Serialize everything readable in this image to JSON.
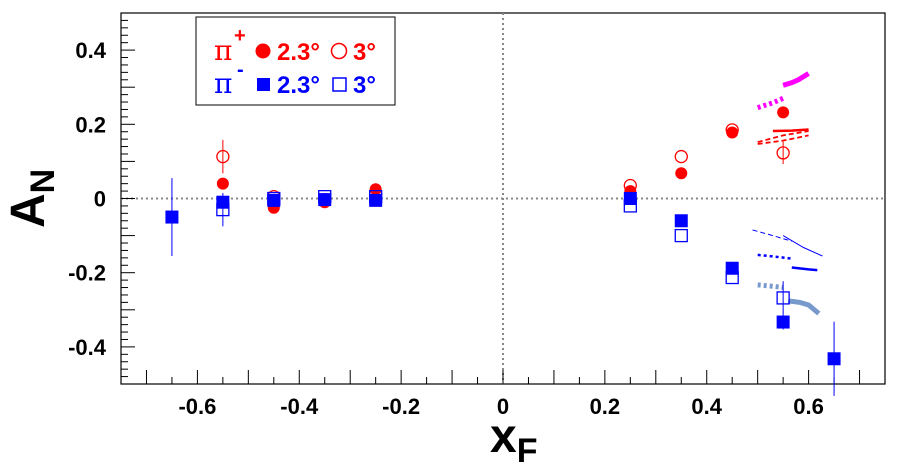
{
  "chart_data": {
    "type": "scatter",
    "xlabel": "x",
    "xlabel_sub": "F",
    "ylabel": "A",
    "ylabel_sub": "N",
    "xlim": [
      -0.75,
      0.75
    ],
    "ylim": [
      -0.5,
      0.5
    ],
    "x_ticks": [
      -0.6,
      -0.4,
      -0.2,
      0,
      0.2,
      0.4,
      0.6
    ],
    "x_tick_labels": [
      "-0.6",
      "-0.4",
      "-0.2",
      "0",
      "0.2",
      "0.4",
      "0.6"
    ],
    "y_ticks": [
      -0.4,
      -0.2,
      0,
      0.2,
      0.4
    ],
    "y_tick_labels": [
      "-0.4",
      "-0.2",
      "0",
      "0.2",
      "0.4"
    ],
    "grid": false,
    "zero_lines": true,
    "legend": {
      "placement": "top-left",
      "rows": [
        {
          "particle": "π",
          "charge": "+",
          "color": "#ff0000",
          "label_a": "2.3°",
          "label_b": "3°",
          "marker_a": "filled-circle",
          "marker_b": "open-circle"
        },
        {
          "particle": "π",
          "charge": "-",
          "color": "#0000ff",
          "label_a": "2.3°",
          "label_b": "3°",
          "marker_a": "filled-square",
          "marker_b": "open-square"
        }
      ]
    },
    "series": [
      {
        "name": "π+ 2.3°",
        "color": "#ff0000",
        "marker": "filled-circle",
        "points": [
          {
            "x": -0.55,
            "y": 0.04,
            "err": 0.0
          },
          {
            "x": -0.45,
            "y": -0.025,
            "err": 0.0
          },
          {
            "x": -0.35,
            "y": -0.01,
            "err": 0.0
          },
          {
            "x": -0.25,
            "y": 0.025,
            "err": 0.0
          },
          {
            "x": 0.25,
            "y": 0.02,
            "err": 0.0
          },
          {
            "x": 0.35,
            "y": 0.068,
            "err": 0.0
          },
          {
            "x": 0.45,
            "y": 0.178,
            "err": 0.0
          },
          {
            "x": 0.55,
            "y": 0.232,
            "err": 0.0
          }
        ]
      },
      {
        "name": "π+ 3°",
        "color": "#ff0000",
        "marker": "open-circle",
        "points": [
          {
            "x": -0.55,
            "y": 0.113,
            "err": 0.045
          },
          {
            "x": -0.45,
            "y": 0.005,
            "err": 0.0
          },
          {
            "x": -0.35,
            "y": -0.003,
            "err": 0.0
          },
          {
            "x": -0.25,
            "y": 0.012,
            "err": 0.0
          },
          {
            "x": 0.25,
            "y": 0.035,
            "err": 0.0
          },
          {
            "x": 0.35,
            "y": 0.113,
            "err": 0.0
          },
          {
            "x": 0.45,
            "y": 0.185,
            "err": 0.0
          },
          {
            "x": 0.55,
            "y": 0.123,
            "err": 0.03
          }
        ]
      },
      {
        "name": "π- 2.3°",
        "color": "#0000ff",
        "marker": "filled-square",
        "points": [
          {
            "x": -0.65,
            "y": -0.05,
            "err": 0.105
          },
          {
            "x": -0.55,
            "y": -0.01,
            "err": 0.0
          },
          {
            "x": -0.45,
            "y": -0.005,
            "err": 0.0
          },
          {
            "x": -0.35,
            "y": -0.003,
            "err": 0.0
          },
          {
            "x": -0.25,
            "y": -0.005,
            "err": 0.0
          },
          {
            "x": 0.25,
            "y": 0.0,
            "err": 0.0
          },
          {
            "x": 0.35,
            "y": -0.06,
            "err": 0.0
          },
          {
            "x": 0.45,
            "y": -0.188,
            "err": 0.0
          },
          {
            "x": 0.55,
            "y": -0.333,
            "err": 0.02
          },
          {
            "x": 0.65,
            "y": -0.432,
            "err": 0.1
          }
        ]
      },
      {
        "name": "π- 3°",
        "color": "#0000ff",
        "marker": "open-square",
        "points": [
          {
            "x": -0.55,
            "y": -0.03,
            "err": 0.045
          },
          {
            "x": -0.45,
            "y": 0.0,
            "err": 0.0
          },
          {
            "x": -0.35,
            "y": 0.005,
            "err": 0.0
          },
          {
            "x": -0.25,
            "y": 0.005,
            "err": 0.0
          },
          {
            "x": 0.25,
            "y": -0.02,
            "err": 0.0
          },
          {
            "x": 0.35,
            "y": -0.1,
            "err": 0.0
          },
          {
            "x": 0.45,
            "y": -0.213,
            "err": 0.0
          },
          {
            "x": 0.55,
            "y": -0.268,
            "err": 0.045
          }
        ]
      }
    ],
    "theory_curves": [
      {
        "color": "#ff00ff",
        "style": "thick-solid",
        "x": [
          0.55,
          0.567,
          0.58,
          0.6
        ],
        "y": [
          0.305,
          0.312,
          0.32,
          0.337
        ]
      },
      {
        "color": "#ff00ff",
        "style": "thick-dotted",
        "x": [
          0.5,
          0.53,
          0.55
        ],
        "y": [
          0.245,
          0.258,
          0.27
        ]
      },
      {
        "color": "#ff0000",
        "style": "solid",
        "x": [
          0.53,
          0.567,
          0.6
        ],
        "y": [
          0.182,
          0.183,
          0.186
        ]
      },
      {
        "color": "#ff0000",
        "style": "dashed",
        "x": [
          0.5,
          0.55,
          0.6
        ],
        "y": [
          0.147,
          0.156,
          0.17
        ]
      },
      {
        "color": "#ff0000",
        "style": "dashed",
        "x": [
          0.5,
          0.55,
          0.6
        ],
        "y": [
          0.152,
          0.17,
          0.182
        ]
      },
      {
        "color": "#0000ff",
        "style": "thin-dashed",
        "x": [
          0.49,
          0.53,
          0.567
        ],
        "y": [
          -0.085,
          -0.1,
          -0.115
        ]
      },
      {
        "color": "#0000ff",
        "style": "thin-solid",
        "x": [
          0.55,
          0.59,
          0.627
        ],
        "y": [
          -0.1,
          -0.132,
          -0.155
        ]
      },
      {
        "color": "#0000ff",
        "style": "dotted",
        "x": [
          0.5,
          0.53,
          0.567
        ],
        "y": [
          -0.152,
          -0.156,
          -0.162
        ]
      },
      {
        "color": "#0000ff",
        "style": "solid",
        "x": [
          0.567,
          0.6,
          0.617
        ],
        "y": [
          -0.186,
          -0.191,
          -0.193
        ]
      },
      {
        "color": "#7799cc",
        "style": "thick-dotted",
        "x": [
          0.5,
          0.533,
          0.55
        ],
        "y": [
          -0.233,
          -0.237,
          -0.24
        ]
      },
      {
        "color": "#7799cc",
        "style": "thick-solid",
        "x": [
          0.56,
          0.583,
          0.6,
          0.62
        ],
        "y": [
          -0.276,
          -0.28,
          -0.287,
          -0.31
        ]
      }
    ]
  }
}
